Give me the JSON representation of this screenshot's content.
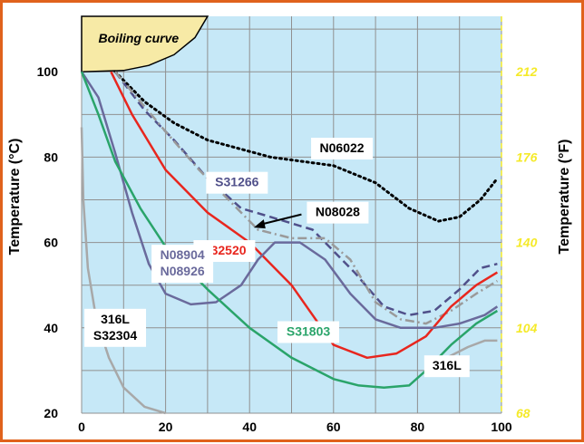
{
  "chart_data": {
    "type": "line",
    "ylabel_left": "Temperature (°C)",
    "ylabel_right": "Temperature (°F)",
    "xlim": [
      0,
      100
    ],
    "ylim": [
      20,
      113
    ],
    "x_ticks": [
      "0",
      "20",
      "40",
      "60",
      "80",
      "100"
    ],
    "y_ticks_left": [
      "20",
      "40",
      "60",
      "80",
      "100"
    ],
    "y_ticks_right": [
      "68",
      "104",
      "140",
      "176",
      "212"
    ],
    "grid": true,
    "boiling_label": "Boiling curve",
    "boiling_curve": [
      [
        0,
        100
      ],
      [
        10,
        100.3
      ],
      [
        16,
        101.5
      ],
      [
        22,
        104
      ],
      [
        27,
        108
      ],
      [
        30,
        113
      ]
    ],
    "series": [
      {
        "name": "N06022",
        "color": "#000000",
        "style": "dotted",
        "label_xy": [
          62,
          82
        ],
        "points": [
          [
            8,
            100
          ],
          [
            15,
            93
          ],
          [
            22,
            88
          ],
          [
            30,
            84
          ],
          [
            45,
            80
          ],
          [
            60,
            78
          ],
          [
            70,
            74
          ],
          [
            78,
            68
          ],
          [
            85,
            65
          ],
          [
            90,
            66
          ],
          [
            95,
            70
          ],
          [
            99,
            75
          ]
        ]
      },
      {
        "name": "S31266",
        "color": "#50508a",
        "style": "dashed",
        "label_xy": [
          37,
          74
        ],
        "points": [
          [
            8,
            100
          ],
          [
            15,
            91
          ],
          [
            22,
            84
          ],
          [
            30,
            75
          ],
          [
            38,
            68
          ],
          [
            45,
            66
          ],
          [
            55,
            63
          ],
          [
            65,
            53
          ],
          [
            72,
            45
          ],
          [
            78,
            43
          ],
          [
            84,
            44
          ],
          [
            90,
            49
          ],
          [
            95,
            54
          ],
          [
            99,
            55
          ]
        ]
      },
      {
        "name": "N08028",
        "color": "#9a9a9a",
        "style": "dashdot",
        "label_xy": [
          61,
          67
        ],
        "points": [
          [
            8,
            100
          ],
          [
            14,
            93
          ],
          [
            20,
            86
          ],
          [
            28,
            77
          ],
          [
            36,
            69
          ],
          [
            42,
            63
          ],
          [
            50,
            61
          ],
          [
            58,
            61
          ],
          [
            64,
            56
          ],
          [
            70,
            46
          ],
          [
            76,
            42
          ],
          [
            82,
            41
          ],
          [
            88,
            44
          ],
          [
            94,
            48
          ],
          [
            99,
            51
          ]
        ]
      },
      {
        "name": "S32520",
        "color": "#e8261e",
        "style": "solid",
        "label_xy": [
          34,
          58
        ],
        "points": [
          [
            7,
            100
          ],
          [
            12,
            90
          ],
          [
            20,
            77
          ],
          [
            30,
            67
          ],
          [
            40,
            60
          ],
          [
            50,
            50
          ],
          [
            55,
            43
          ],
          [
            60,
            36
          ],
          [
            68,
            33
          ],
          [
            75,
            34
          ],
          [
            82,
            38
          ],
          [
            88,
            45
          ],
          [
            94,
            50
          ],
          [
            99,
            53
          ]
        ]
      },
      {
        "name": "N08904 N08926",
        "label_lines": [
          "N08904",
          "N08926"
        ],
        "color": "#6a6a9c",
        "style": "solid",
        "label_xy": [
          24,
          55
        ],
        "points": [
          [
            0,
            100
          ],
          [
            4,
            94
          ],
          [
            8,
            81
          ],
          [
            12,
            67
          ],
          [
            16,
            55
          ],
          [
            20,
            48
          ],
          [
            26,
            45.5
          ],
          [
            32,
            46
          ],
          [
            38,
            50
          ],
          [
            42,
            56
          ],
          [
            46,
            60
          ],
          [
            52,
            60
          ],
          [
            58,
            56
          ],
          [
            64,
            48
          ],
          [
            70,
            42
          ],
          [
            76,
            40
          ],
          [
            84,
            40
          ],
          [
            90,
            41
          ],
          [
            96,
            43
          ],
          [
            99,
            45
          ]
        ]
      },
      {
        "name": "S31803",
        "color": "#2aa46a",
        "style": "solid",
        "label_xy": [
          54,
          39
        ],
        "points": [
          [
            0,
            100
          ],
          [
            4,
            90
          ],
          [
            8,
            79
          ],
          [
            14,
            68
          ],
          [
            20,
            59
          ],
          [
            30,
            49
          ],
          [
            40,
            40
          ],
          [
            50,
            33
          ],
          [
            60,
            28
          ],
          [
            66,
            26.5
          ],
          [
            72,
            26
          ],
          [
            78,
            26.5
          ],
          [
            82,
            30
          ],
          [
            88,
            36
          ],
          [
            94,
            41
          ],
          [
            99,
            44
          ]
        ]
      },
      {
        "name": "316L S32304",
        "label_lines": [
          "316L",
          "S32304"
        ],
        "color": "#a8a8a8",
        "style": "solid",
        "label_xy": [
          8,
          40
        ],
        "points": [
          [
            0,
            87
          ],
          [
            0.4,
            70
          ],
          [
            1.5,
            54
          ],
          [
            3.5,
            42
          ],
          [
            6.5,
            33
          ],
          [
            10,
            26
          ],
          [
            15,
            21.5
          ],
          [
            20,
            20
          ]
        ]
      },
      {
        "name": "316L",
        "color": "#a8a8a8",
        "style": "solid",
        "label_xy": [
          87,
          31
        ],
        "points": [
          [
            82,
            29
          ],
          [
            87,
            33
          ],
          [
            92,
            35.5
          ],
          [
            96,
            37
          ],
          [
            99,
            37
          ]
        ]
      }
    ]
  },
  "colors": {
    "plot_bg": "#c6e8f7",
    "grid": "#909090",
    "boiling_fill": "#f7eaa6",
    "frame": "#e0621c",
    "right_axis_text": "#f5ea2a",
    "arrow": "#000000"
  }
}
